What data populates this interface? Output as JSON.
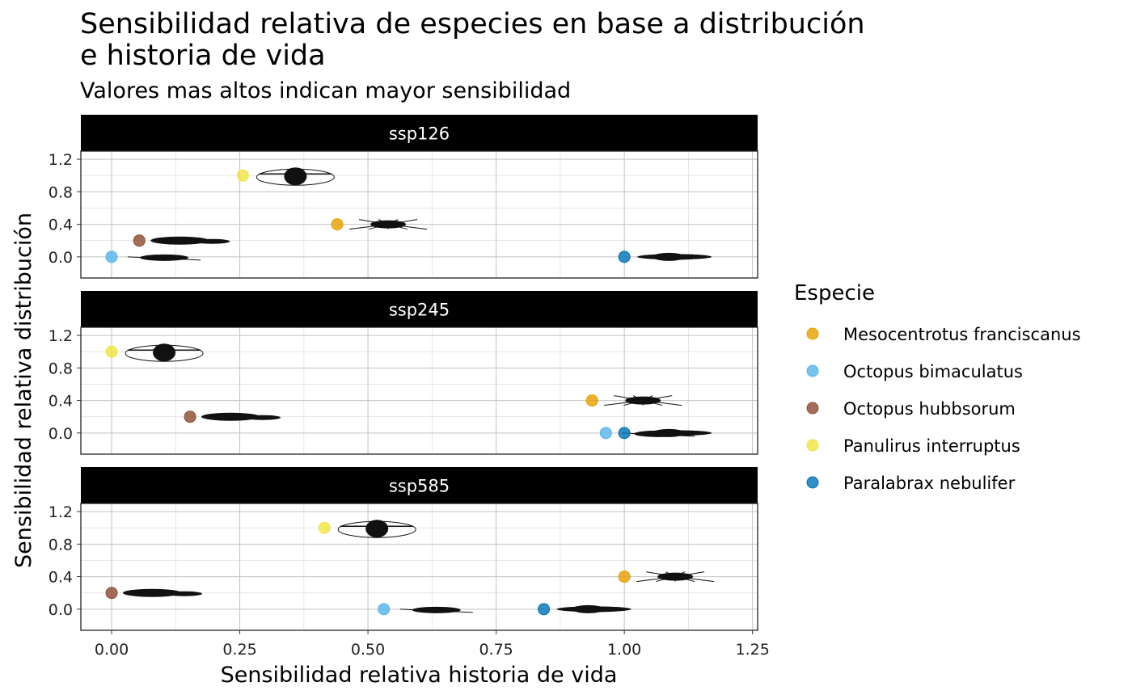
{
  "chart_data": {
    "type": "scatter",
    "title_line1": "Sensibilidad relativa de especies en base a distribución",
    "title_line2": "e historia de vida",
    "subtitle": "Valores mas altos indican mayor sensibilidad",
    "xlabel": "Sensibilidad relativa historia de vida",
    "ylabel": "Sensibilidad relativa distribución",
    "xlim": [
      -0.06,
      1.26
    ],
    "ylim": [
      -0.26,
      1.3
    ],
    "x_ticks": [
      "0.00",
      "0.25",
      "0.50",
      "0.75",
      "1.00",
      "1.25"
    ],
    "x_tick_values": [
      0,
      0.25,
      0.5,
      0.75,
      1.0,
      1.25
    ],
    "y_ticks": [
      "0.0",
      "0.4",
      "0.8",
      "1.2"
    ],
    "y_tick_values": [
      0,
      0.4,
      0.8,
      1.2
    ],
    "grid": true,
    "legend": {
      "title": "Especie",
      "position": "right",
      "entries": [
        {
          "name": "Mesocentrotus franciscanus",
          "color": "#E69F00"
        },
        {
          "name": "Octopus bimaculatus",
          "color": "#56B4E9"
        },
        {
          "name": "Octopus hubbsorum",
          "color": "#8C4A2F"
        },
        {
          "name": "Panulirus interruptus",
          "color": "#F0E442"
        },
        {
          "name": "Paralabrax nebulifer",
          "color": "#0072B2"
        }
      ]
    },
    "panels": [
      {
        "label": "ssp126",
        "points": [
          {
            "species": "Mesocentrotus franciscanus",
            "x": 0.44,
            "y": 0.4
          },
          {
            "species": "Octopus bimaculatus",
            "x": 0.0,
            "y": 0.0
          },
          {
            "species": "Octopus hubbsorum",
            "x": 0.054,
            "y": 0.2
          },
          {
            "species": "Panulirus interruptus",
            "x": 0.256,
            "y": 1.0
          },
          {
            "species": "Paralabrax nebulifer",
            "x": 1.0,
            "y": 0.0
          }
        ]
      },
      {
        "label": "ssp245",
        "points": [
          {
            "species": "Mesocentrotus franciscanus",
            "x": 0.937,
            "y": 0.4
          },
          {
            "species": "Octopus bimaculatus",
            "x": 0.964,
            "y": 0.0
          },
          {
            "species": "Octopus hubbsorum",
            "x": 0.153,
            "y": 0.2
          },
          {
            "species": "Panulirus interruptus",
            "x": 0.0,
            "y": 1.0
          },
          {
            "species": "Paralabrax nebulifer",
            "x": 1.0,
            "y": 0.0
          }
        ]
      },
      {
        "label": "ssp585",
        "points": [
          {
            "species": "Mesocentrotus franciscanus",
            "x": 1.0,
            "y": 0.4
          },
          {
            "species": "Octopus bimaculatus",
            "x": 0.531,
            "y": 0.0
          },
          {
            "species": "Octopus hubbsorum",
            "x": 0.0,
            "y": 0.2
          },
          {
            "species": "Panulirus interruptus",
            "x": 0.415,
            "y": 1.0
          },
          {
            "species": "Paralabrax nebulifer",
            "x": 0.843,
            "y": 0.0
          }
        ]
      }
    ]
  }
}
